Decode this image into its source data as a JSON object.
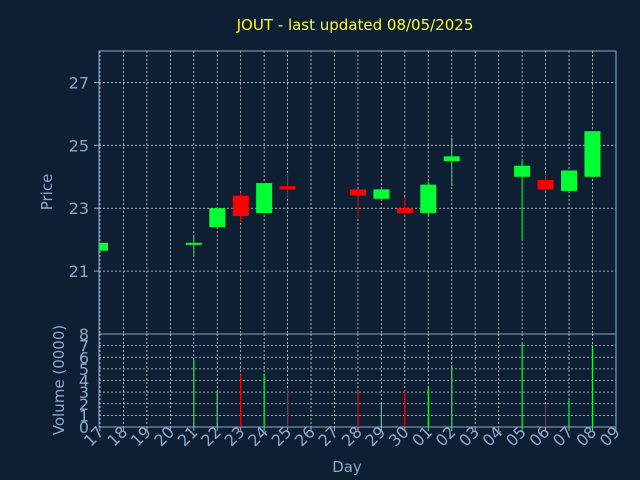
{
  "chart_data": {
    "type": "candlestick",
    "title": "JOUT - last updated 08/05/2025",
    "xlabel": "Day",
    "price_panel": {
      "ylabel": "Price",
      "ylim": [
        19.0,
        28.0
      ],
      "yticks": [
        21,
        23,
        25,
        27
      ],
      "grid": true
    },
    "volume_panel": {
      "ylabel": "Volume (0000)",
      "ylim": [
        0,
        8
      ],
      "yticks": [
        0,
        1,
        2,
        3,
        4,
        5,
        6,
        7,
        8
      ]
    },
    "x_ticks": [
      "17",
      "18",
      "19",
      "20",
      "21",
      "22",
      "23",
      "24",
      "25",
      "26",
      "27",
      "28",
      "29",
      "30",
      "01",
      "02",
      "03",
      "04",
      "05",
      "06",
      "07",
      "08",
      "09"
    ],
    "candles": [
      {
        "day": "17",
        "open": 21.65,
        "close": 21.9,
        "high": 21.9,
        "low": 21.65,
        "volume": 0
      },
      {
        "day": "21",
        "open": 21.85,
        "close": 21.9,
        "high": 22.1,
        "low": 21.5,
        "volume": 5.8
      },
      {
        "day": "22",
        "open": 22.4,
        "close": 23.0,
        "high": 23.0,
        "low": 22.4,
        "volume": 3.1
      },
      {
        "day": "23",
        "open": 23.4,
        "close": 22.75,
        "high": 23.5,
        "low": 22.55,
        "volume": 4.5
      },
      {
        "day": "24",
        "open": 22.85,
        "close": 23.8,
        "high": 23.8,
        "low": 22.85,
        "volume": 4.6
      },
      {
        "day": "25",
        "open": 23.7,
        "close": 23.6,
        "high": 24.1,
        "low": 23.3,
        "volume": 3.3
      },
      {
        "day": "28",
        "open": 23.6,
        "close": 23.4,
        "high": 23.6,
        "low": 22.7,
        "volume": 3.1
      },
      {
        "day": "29",
        "open": 23.3,
        "close": 23.6,
        "high": 23.6,
        "low": 23.25,
        "volume": 2.0
      },
      {
        "day": "30",
        "open": 23.0,
        "close": 22.85,
        "high": 23.35,
        "low": 22.85,
        "volume": 3.1
      },
      {
        "day": "01",
        "open": 22.85,
        "close": 23.75,
        "high": 23.85,
        "low": 22.75,
        "volume": 3.5
      },
      {
        "day": "02",
        "open": 24.5,
        "close": 24.65,
        "high": 25.25,
        "low": 23.7,
        "volume": 5.3
      },
      {
        "day": "05",
        "open": 24.0,
        "close": 24.35,
        "high": 24.55,
        "low": 22.0,
        "volume": 7.2
      },
      {
        "day": "06",
        "open": 23.9,
        "close": 23.6,
        "high": 24.1,
        "low": 23.6,
        "volume": 2.0
      },
      {
        "day": "07",
        "open": 23.55,
        "close": 24.2,
        "high": 24.2,
        "low": 23.55,
        "volume": 2.3
      },
      {
        "day": "08",
        "open": 24.0,
        "close": 25.45,
        "high": 25.45,
        "low": 24.0,
        "volume": 6.9
      }
    ],
    "colors": {
      "background": "#0f1f33",
      "up": "#00ff33",
      "down": "#ff0000",
      "axis_text": "#8aa8c8",
      "title": "#ffff33",
      "grid": "#c8d0d8"
    }
  }
}
